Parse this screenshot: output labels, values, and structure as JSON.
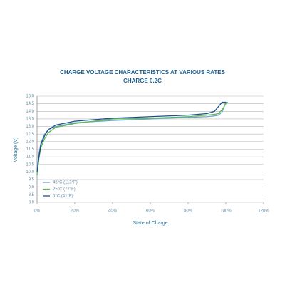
{
  "chart_data": {
    "type": "line",
    "title": "CHARGE VOLTAGE CHARACTERISTICS AT VARIOUS RATES",
    "subtitle": "CHARGE 0.2C",
    "x_label": "State of Charge",
    "y_label": "Voltage (V)",
    "x": [
      0,
      1,
      2,
      4,
      6,
      10,
      20,
      40,
      60,
      80,
      90,
      94,
      96,
      98,
      100,
      101
    ],
    "series": [
      {
        "name": "45°C (113°F)",
        "color": "#6fa8c0",
        "values": [
          10.2,
          11.2,
          11.9,
          12.5,
          12.8,
          13.0,
          13.25,
          13.4,
          13.5,
          13.6,
          13.65,
          13.7,
          13.75,
          13.95,
          14.6,
          14.6
        ]
      },
      {
        "name": "25°C (77°F)",
        "color": "#5cb85c",
        "values": [
          9.8,
          10.9,
          11.6,
          12.2,
          12.6,
          12.95,
          13.2,
          13.5,
          13.55,
          13.65,
          13.75,
          13.8,
          13.85,
          14.1,
          14.5,
          14.6
        ]
      },
      {
        "name": "5°C (41°F)",
        "color": "#1f4e8c",
        "values": [
          10.0,
          11.0,
          11.8,
          12.4,
          12.8,
          13.1,
          13.35,
          13.55,
          13.65,
          13.75,
          13.85,
          14.0,
          14.3,
          14.6,
          14.6,
          null
        ]
      }
    ],
    "xlim": [
      0,
      120
    ],
    "xticks": [
      {
        "value": 0,
        "label": "0%"
      },
      {
        "value": 20,
        "label": "20%"
      },
      {
        "value": 40,
        "label": "40%"
      },
      {
        "value": 60,
        "label": "60%"
      },
      {
        "value": 80,
        "label": "80%"
      },
      {
        "value": 100,
        "label": "100%"
      },
      {
        "value": 120,
        "label": "120%"
      }
    ],
    "ylim": [
      8,
      15
    ],
    "yticks": [
      {
        "value": 8,
        "label": "8.0"
      },
      {
        "value": 8.5,
        "label": "8.5"
      },
      {
        "value": 9,
        "label": "9.0"
      },
      {
        "value": 9.5,
        "label": "9.5"
      },
      {
        "value": 10,
        "label": "10.0"
      },
      {
        "value": 10.5,
        "label": "10.5"
      },
      {
        "value": 11,
        "label": "11.0"
      },
      {
        "value": 11.5,
        "label": "11.5"
      },
      {
        "value": 12,
        "label": "12.0"
      },
      {
        "value": 12.5,
        "label": "12.5"
      },
      {
        "value": 13,
        "label": "13.0"
      },
      {
        "value": 13.5,
        "label": "13.5"
      },
      {
        "value": 14,
        "label": "14.0"
      },
      {
        "value": 14.5,
        "label": "14.5"
      },
      {
        "value": 15,
        "label": "15.0"
      }
    ],
    "grid": true,
    "legend": "lower-left"
  }
}
